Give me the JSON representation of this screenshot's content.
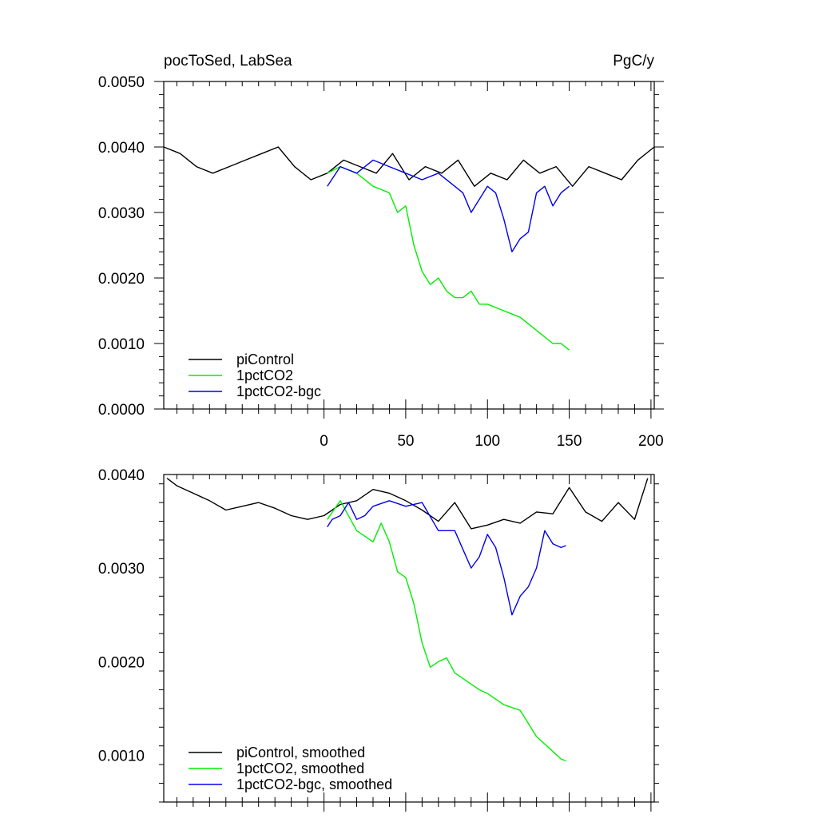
{
  "chart_data": [
    {
      "type": "line",
      "title_left": "pocToSed, LabSea",
      "title_right": "PgC/y",
      "xlabel": "",
      "ylabel": "",
      "xlim": [
        -98,
        202
      ],
      "ylim": [
        0.0,
        0.005
      ],
      "x_ticks": [
        0,
        50,
        100,
        150,
        200
      ],
      "x_tick_labels": [
        "0",
        "50",
        "100",
        "150",
        "200"
      ],
      "y_ticks": [
        0.0,
        0.001,
        0.002,
        0.003,
        0.004,
        0.005
      ],
      "y_tick_labels": [
        "0.0000",
        "0.0010",
        "0.0020",
        "0.0030",
        "0.0040",
        "0.0050"
      ],
      "legend_position": "bottom-left",
      "series": [
        {
          "name": "piControl",
          "color": "#000000",
          "x": [
            -98,
            -88,
            -78,
            -68,
            -58,
            -48,
            -38,
            -28,
            -18,
            -8,
            2,
            12,
            22,
            32,
            42,
            52,
            62,
            72,
            82,
            92,
            102,
            112,
            122,
            132,
            142,
            152,
            162,
            172,
            182,
            192,
            202
          ],
          "y": [
            0.004,
            0.0039,
            0.0037,
            0.0036,
            0.0037,
            0.0038,
            0.0039,
            0.004,
            0.0037,
            0.0035,
            0.0036,
            0.0038,
            0.0037,
            0.0036,
            0.0039,
            0.0035,
            0.0037,
            0.0036,
            0.0038,
            0.0034,
            0.0036,
            0.0035,
            0.0038,
            0.0036,
            0.0037,
            0.0034,
            0.0037,
            0.0036,
            0.0035,
            0.0038,
            0.004
          ]
        },
        {
          "name": "1pctCO2",
          "color": "#00ee00",
          "x": [
            2,
            10,
            20,
            30,
            40,
            45,
            50,
            55,
            60,
            65,
            70,
            75,
            80,
            85,
            90,
            95,
            100,
            110,
            120,
            130,
            140,
            145,
            150
          ],
          "y": [
            0.0036,
            0.0037,
            0.0036,
            0.0034,
            0.0033,
            0.003,
            0.0031,
            0.0025,
            0.0021,
            0.0019,
            0.002,
            0.0018,
            0.0017,
            0.0017,
            0.0018,
            0.0016,
            0.0016,
            0.0015,
            0.0014,
            0.0012,
            0.001,
            0.001,
            0.0009
          ]
        },
        {
          "name": "1pctCO2-bgc",
          "color": "#0000ee",
          "x": [
            2,
            10,
            20,
            30,
            40,
            50,
            60,
            70,
            80,
            85,
            90,
            95,
            100,
            105,
            110,
            115,
            120,
            125,
            130,
            135,
            140,
            145,
            150
          ],
          "y": [
            0.0034,
            0.0037,
            0.0036,
            0.0038,
            0.0037,
            0.0036,
            0.0035,
            0.0036,
            0.0034,
            0.0033,
            0.003,
            0.0032,
            0.0034,
            0.0033,
            0.0029,
            0.0024,
            0.0026,
            0.0027,
            0.0033,
            0.0034,
            0.0031,
            0.0033,
            0.0034
          ]
        }
      ]
    },
    {
      "type": "line",
      "xlabel": "",
      "ylabel": "",
      "xlim": [
        -98,
        202
      ],
      "ylim": [
        0.0005,
        0.004
      ],
      "x_ticks": [
        0,
        50,
        100,
        150,
        200
      ],
      "y_ticks": [
        0.001,
        0.002,
        0.003,
        0.004
      ],
      "y_tick_labels": [
        "0.0010",
        "0.0020",
        "0.0030",
        "0.0040"
      ],
      "legend_position": "bottom-left",
      "series": [
        {
          "name": "piControl, smoothed",
          "color": "#000000",
          "x": [
            -96,
            -90,
            -80,
            -70,
            -60,
            -50,
            -40,
            -30,
            -20,
            -10,
            0,
            10,
            20,
            30,
            40,
            50,
            60,
            70,
            80,
            90,
            100,
            110,
            120,
            130,
            140,
            150,
            160,
            170,
            180,
            190,
            198
          ],
          "y": [
            0.00396,
            0.00388,
            0.0038,
            0.00372,
            0.00362,
            0.00366,
            0.0037,
            0.00364,
            0.00356,
            0.00352,
            0.00356,
            0.00368,
            0.00372,
            0.00384,
            0.0038,
            0.00372,
            0.00362,
            0.0035,
            0.0037,
            0.00342,
            0.00346,
            0.00352,
            0.00348,
            0.0036,
            0.00358,
            0.00386,
            0.0036,
            0.0035,
            0.0037,
            0.00352,
            0.00396
          ]
        },
        {
          "name": "1pctCO2, smoothed",
          "color": "#00ee00",
          "x": [
            2,
            10,
            20,
            30,
            35,
            40,
            45,
            50,
            55,
            60,
            65,
            70,
            75,
            80,
            90,
            95,
            100,
            110,
            120,
            130,
            140,
            145,
            148
          ],
          "y": [
            0.00352,
            0.00372,
            0.0034,
            0.00328,
            0.00348,
            0.00328,
            0.00296,
            0.0029,
            0.00262,
            0.0022,
            0.00194,
            0.002,
            0.00204,
            0.00188,
            0.00176,
            0.0017,
            0.00166,
            0.00154,
            0.00148,
            0.0012,
            0.00104,
            0.00096,
            0.00094
          ]
        },
        {
          "name": "1pctCO2-bgc, smoothed",
          "color": "#0000ee",
          "x": [
            2,
            5,
            10,
            15,
            20,
            25,
            30,
            40,
            50,
            60,
            70,
            80,
            85,
            90,
            95,
            100,
            105,
            110,
            115,
            120,
            125,
            130,
            135,
            140,
            145,
            148
          ],
          "y": [
            0.00344,
            0.00352,
            0.00356,
            0.0037,
            0.00352,
            0.00356,
            0.00366,
            0.00372,
            0.00366,
            0.0037,
            0.0034,
            0.0034,
            0.0032,
            0.003,
            0.00312,
            0.00336,
            0.00322,
            0.0029,
            0.0025,
            0.0027,
            0.0028,
            0.003,
            0.0034,
            0.00326,
            0.00322,
            0.00324
          ]
        }
      ]
    }
  ]
}
